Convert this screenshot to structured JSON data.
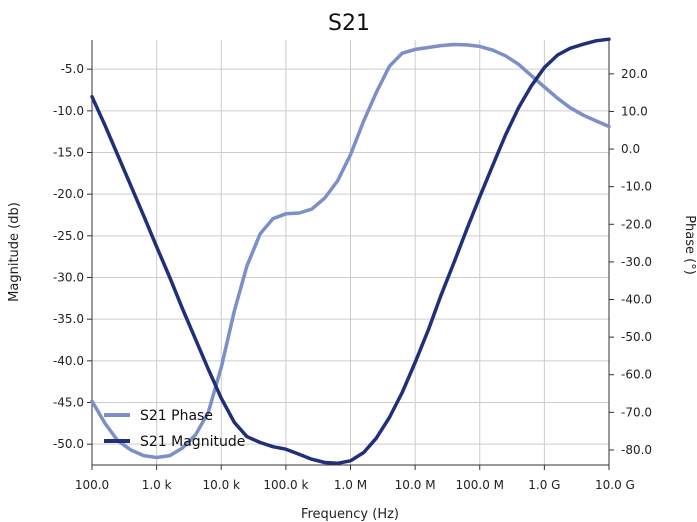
{
  "chart_data": {
    "type": "line",
    "title": "S21",
    "xlabel": "Frequency (Hz)",
    "ylabel": "Magnitude (db)",
    "y2label": "Phase (°)",
    "x_scale": "log",
    "xlim": [
      100,
      10000000000
    ],
    "ylim": [
      -52.5,
      -1.5
    ],
    "y2lim": [
      -84,
      29
    ],
    "grid": true,
    "legend_position": "bottom-left",
    "x_ticks": [
      {
        "value": 100,
        "label": "100.0"
      },
      {
        "value": 1000,
        "label": "1.0 k"
      },
      {
        "value": 10000,
        "label": "10.0 k"
      },
      {
        "value": 100000,
        "label": "100.0 k"
      },
      {
        "value": 1000000,
        "label": "1.0 M"
      },
      {
        "value": 10000000,
        "label": "10.0 M"
      },
      {
        "value": 100000000,
        "label": "100.0 M"
      },
      {
        "value": 1000000000,
        "label": "1.0 G"
      },
      {
        "value": 10000000000,
        "label": "10.0 G"
      }
    ],
    "y_ticks": [
      {
        "value": -5,
        "label": "-5.0"
      },
      {
        "value": -10,
        "label": "-10.0"
      },
      {
        "value": -15,
        "label": "-15.0"
      },
      {
        "value": -20,
        "label": "-20.0"
      },
      {
        "value": -25,
        "label": "-25.0"
      },
      {
        "value": -30,
        "label": "-30.0"
      },
      {
        "value": -35,
        "label": "-35.0"
      },
      {
        "value": -40,
        "label": "-40.0"
      },
      {
        "value": -45,
        "label": "-45.0"
      },
      {
        "value": -50,
        "label": "-50.0"
      }
    ],
    "y2_ticks": [
      {
        "value": 20,
        "label": "20.0"
      },
      {
        "value": 10,
        "label": "10.0"
      },
      {
        "value": 0,
        "label": "0.0"
      },
      {
        "value": -10,
        "label": "-10.0"
      },
      {
        "value": -20,
        "label": "-20.0"
      },
      {
        "value": -30,
        "label": "-30.0"
      },
      {
        "value": -40,
        "label": "-40.0"
      },
      {
        "value": -50,
        "label": "-50.0"
      },
      {
        "value": -60,
        "label": "-60.0"
      },
      {
        "value": -70,
        "label": "-70.0"
      },
      {
        "value": -80,
        "label": "-80.0"
      }
    ],
    "series": [
      {
        "name": "S21 Phase",
        "axis": "right",
        "color": "#7b8fc9",
        "x": [
          100,
          160,
          250,
          400,
          630,
          1000,
          1600,
          2500,
          4000,
          6300,
          10000,
          16000,
          25000,
          40000,
          63000,
          100000,
          160000,
          250000,
          400000,
          630000,
          1000000,
          1600000,
          2500000,
          4000000,
          6300000,
          10000000,
          16000000,
          25000000,
          40000000,
          63000000,
          100000000,
          160000000,
          250000000,
          400000000,
          630000000,
          1000000000,
          1600000000,
          2500000000,
          4000000000,
          6300000000,
          10000000000
        ],
        "values": [
          -67,
          -73,
          -77.5,
          -80,
          -81.5,
          -82,
          -81.5,
          -79.5,
          -76,
          -70,
          -58,
          -43,
          -31,
          -22.5,
          -18.5,
          -17.2,
          -17,
          -16,
          -13,
          -8.5,
          -1.5,
          7.5,
          15,
          22,
          25.5,
          26.5,
          27,
          27.5,
          27.8,
          27.7,
          27.3,
          26.3,
          24.8,
          22.5,
          19.5,
          16.5,
          13.5,
          11,
          9,
          7.5,
          6
        ]
      },
      {
        "name": "S21 Magnitude",
        "axis": "left",
        "color": "#1f2f7a",
        "x": [
          100,
          160,
          250,
          400,
          630,
          1000,
          1600,
          2500,
          4000,
          6300,
          10000,
          16000,
          25000,
          40000,
          63000,
          100000,
          160000,
          250000,
          400000,
          630000,
          1000000,
          1600000,
          2500000,
          4000000,
          6300000,
          10000000,
          16000000,
          25000000,
          40000000,
          63000000,
          100000000,
          160000000,
          250000000,
          400000000,
          630000000,
          1000000000,
          1600000000,
          2500000000,
          4000000000,
          6300000000,
          10000000000
        ],
        "values": [
          -8.3,
          -11.8,
          -15.3,
          -19,
          -22.6,
          -26.3,
          -30,
          -33.7,
          -37.4,
          -41,
          -44.5,
          -47.4,
          -49.1,
          -49.8,
          -50.3,
          -50.6,
          -51.2,
          -51.8,
          -52.2,
          -52.3,
          -52,
          -51,
          -49.3,
          -46.8,
          -43.8,
          -40.2,
          -36.3,
          -32.2,
          -28.2,
          -24.2,
          -20.3,
          -16.5,
          -12.9,
          -9.6,
          -7,
          -4.8,
          -3.3,
          -2.5,
          -2,
          -1.6,
          -1.4
        ]
      }
    ]
  }
}
